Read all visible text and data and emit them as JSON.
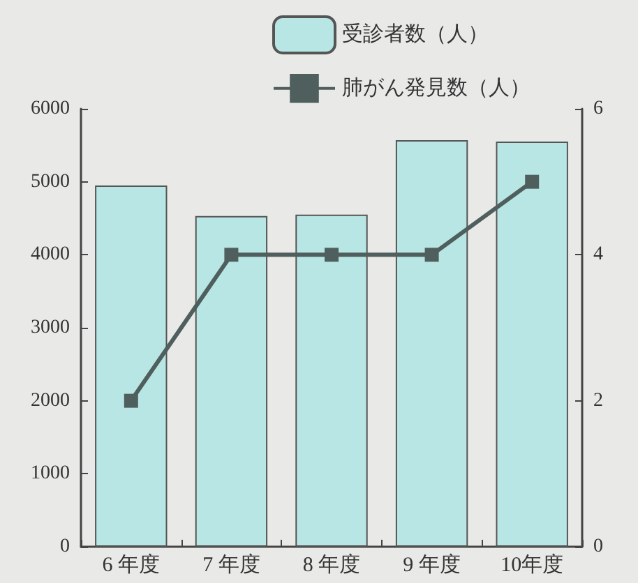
{
  "chart_data": {
    "type": "bar",
    "categories": [
      "6 年度",
      "7 年度",
      "8 年度",
      "9 年度",
      "10年度"
    ],
    "series": [
      {
        "name": "受診者数（人）",
        "color": "#b8e6e4",
        "values": [
          4950,
          4530,
          4550,
          5570,
          5550
        ]
      },
      {
        "name": "肺がん発見数（人）",
        "type": "line",
        "axis": "y2",
        "color": "#4f5f5d",
        "marker": "square",
        "values": [
          2,
          4,
          4,
          4,
          5
        ]
      }
    ],
    "ylim": [
      0,
      6000
    ],
    "yticks": [
      0,
      1000,
      2000,
      3000,
      4000,
      5000,
      6000
    ],
    "y2lim": [
      0,
      6
    ],
    "y2ticks": [
      0,
      2,
      4,
      6
    ],
    "grid": false,
    "legend": "top"
  }
}
